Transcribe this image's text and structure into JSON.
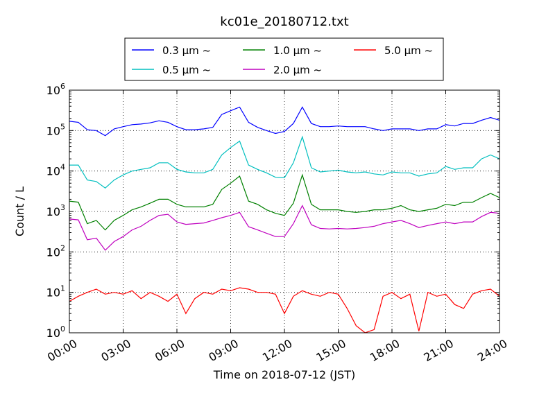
{
  "chart_data": {
    "type": "line",
    "title": "kc01e_20180712.txt",
    "xlabel": "Time on 2018-07-12 (JST)",
    "ylabel": "Count / L",
    "yscale": "log",
    "ylim": [
      1,
      1000000
    ],
    "grid": true,
    "legend_position": "top",
    "x_unit": "hours",
    "xlim": [
      0,
      24
    ],
    "x_tick_labels": [
      "00:00",
      "03:00",
      "06:00",
      "09:00",
      "12:00",
      "15:00",
      "18:00",
      "21:00",
      "24:00"
    ],
    "y_tick_labels": [
      {
        "base": "10",
        "exp": "0"
      },
      {
        "base": "10",
        "exp": "1"
      },
      {
        "base": "10",
        "exp": "2"
      },
      {
        "base": "10",
        "exp": "3"
      },
      {
        "base": "10",
        "exp": "4"
      },
      {
        "base": "10",
        "exp": "5"
      },
      {
        "base": "10",
        "exp": "6"
      }
    ],
    "x": [
      0,
      0.5,
      1,
      1.5,
      2,
      2.5,
      3,
      3.5,
      4,
      4.5,
      5,
      5.5,
      6,
      6.5,
      7,
      7.5,
      8,
      8.5,
      9,
      9.5,
      10,
      10.5,
      11,
      11.5,
      12,
      12.5,
      13,
      13.5,
      14,
      14.5,
      15,
      15.5,
      16,
      16.5,
      17,
      17.5,
      18,
      18.5,
      19,
      19.5,
      20,
      20.5,
      21,
      21.5,
      22,
      22.5,
      23,
      23.5,
      24
    ],
    "series": [
      {
        "name": "0.3 μm ~",
        "color": "#0000ff",
        "values": [
          170000,
          160000,
          105000,
          100000,
          75000,
          110000,
          125000,
          140000,
          145000,
          155000,
          175000,
          160000,
          125000,
          105000,
          105000,
          110000,
          120000,
          250000,
          310000,
          380000,
          160000,
          120000,
          100000,
          85000,
          95000,
          150000,
          380000,
          150000,
          125000,
          125000,
          130000,
          125000,
          125000,
          125000,
          110000,
          100000,
          110000,
          110000,
          110000,
          100000,
          110000,
          110000,
          140000,
          130000,
          150000,
          150000,
          180000,
          210000,
          180000
        ]
      },
      {
        "name": "0.5 μm ~",
        "color": "#00bfbf",
        "values": [
          14000,
          14000,
          6000,
          5500,
          3800,
          6000,
          8000,
          10000,
          11000,
          12000,
          16000,
          16000,
          11000,
          9500,
          9000,
          9000,
          11000,
          25000,
          38000,
          55000,
          14000,
          11000,
          9000,
          7000,
          6800,
          16000,
          70000,
          12000,
          9500,
          10000,
          10500,
          9500,
          9000,
          9500,
          8500,
          8000,
          9500,
          9000,
          9000,
          7500,
          8500,
          9000,
          13000,
          11000,
          12000,
          12000,
          20000,
          25000,
          20000
        ]
      },
      {
        "name": "1.0 μm ~",
        "color": "#008000",
        "values": [
          1800,
          1700,
          500,
          600,
          350,
          600,
          800,
          1100,
          1300,
          1600,
          2000,
          2000,
          1500,
          1300,
          1300,
          1300,
          1500,
          3500,
          5000,
          7500,
          1800,
          1500,
          1100,
          900,
          800,
          1600,
          8000,
          1500,
          1100,
          1100,
          1100,
          1000,
          950,
          1000,
          1100,
          1100,
          1200,
          1400,
          1100,
          1000,
          1100,
          1200,
          1500,
          1400,
          1700,
          1700,
          2200,
          2800,
          2200
        ]
      },
      {
        "name": "2.0 μm ~",
        "color": "#bf00bf",
        "values": [
          650,
          620,
          200,
          220,
          110,
          180,
          240,
          350,
          430,
          600,
          800,
          850,
          550,
          480,
          500,
          520,
          600,
          700,
          800,
          950,
          420,
          350,
          290,
          240,
          240,
          500,
          1400,
          470,
          380,
          370,
          380,
          370,
          380,
          400,
          430,
          500,
          550,
          600,
          500,
          400,
          450,
          500,
          550,
          500,
          550,
          550,
          750,
          950,
          900
        ]
      },
      {
        "name": "5.0 μm ~",
        "color": "#ff0000",
        "values": [
          6,
          8,
          10,
          12,
          9,
          10,
          9,
          11,
          7,
          10,
          8,
          6,
          9,
          3,
          7,
          10,
          9,
          12,
          11,
          13,
          12,
          10,
          10,
          9,
          3,
          8,
          11,
          9,
          8,
          10,
          9,
          4,
          1.5,
          1,
          1.2,
          8,
          10,
          7,
          9,
          1.1,
          10,
          8,
          9,
          5,
          4,
          9,
          11,
          12,
          8
        ]
      }
    ]
  }
}
